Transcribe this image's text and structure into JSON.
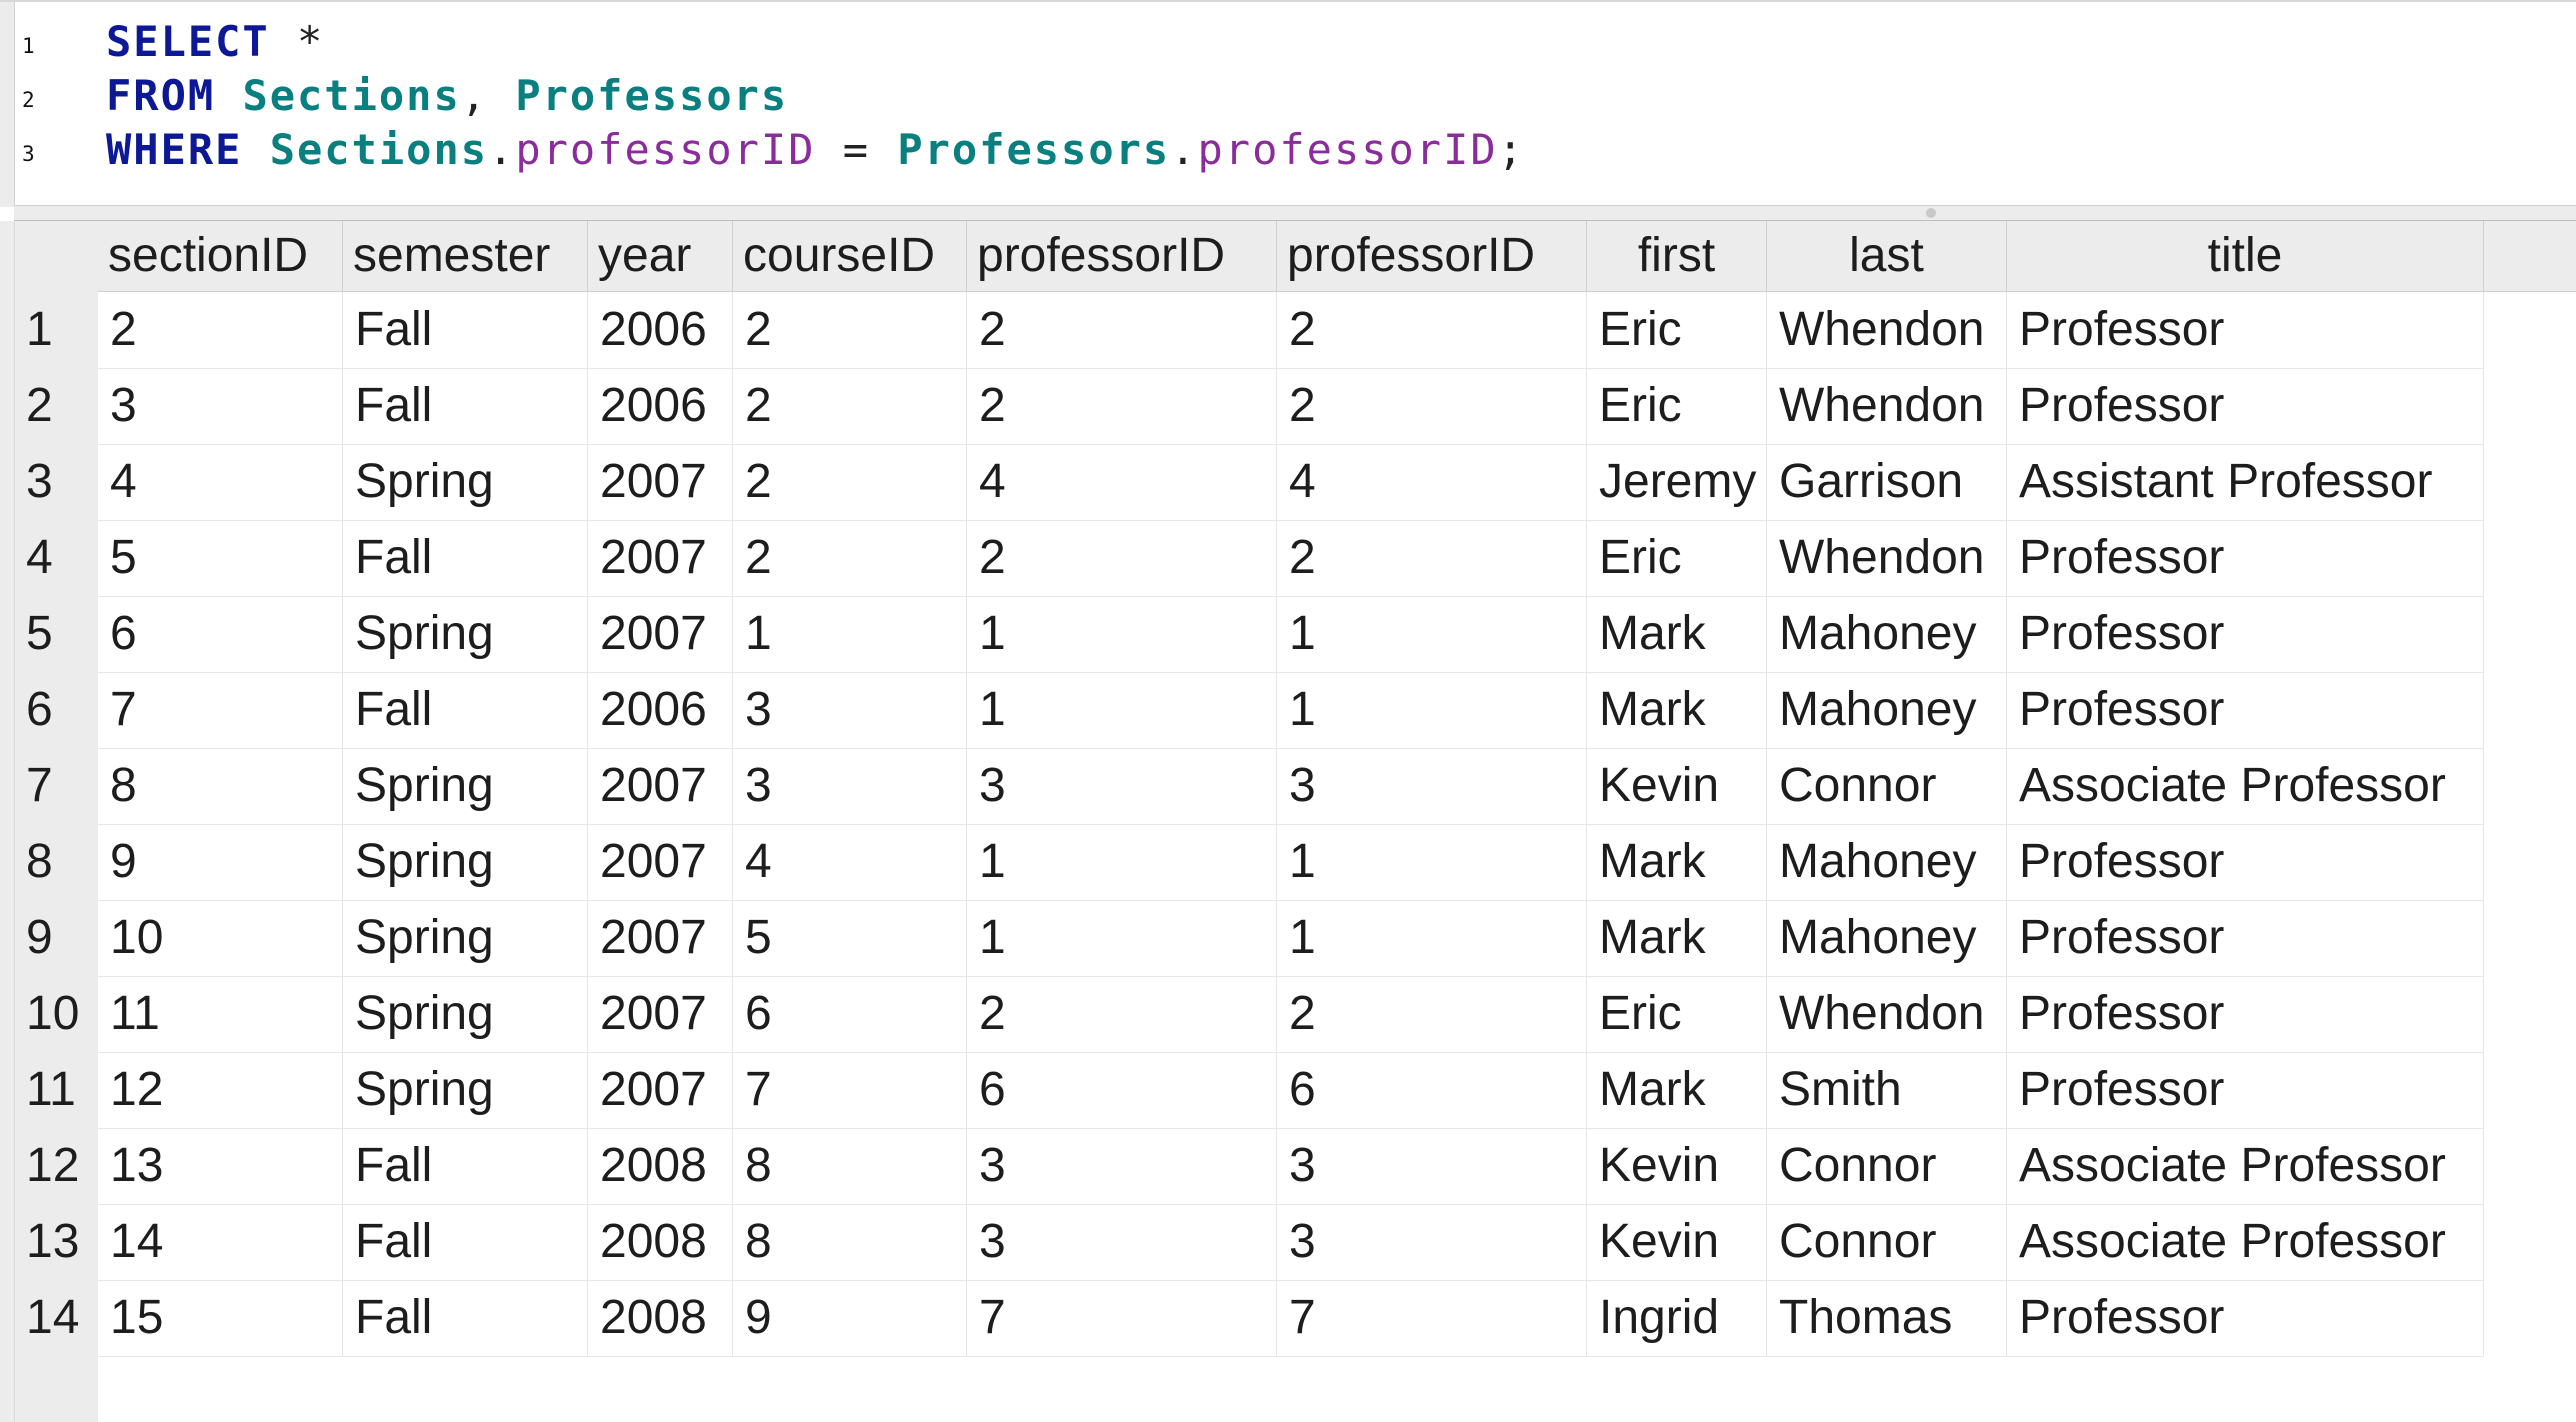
{
  "editor": {
    "line_numbers": [
      "1",
      "2",
      "3"
    ],
    "lines": [
      {
        "tokens": [
          {
            "text": "SELECT",
            "kind": "kw"
          },
          {
            "text": " *",
            "kind": "op"
          }
        ]
      },
      {
        "tokens": [
          {
            "text": "FROM",
            "kind": "kw"
          },
          {
            "text": " ",
            "kind": "op"
          },
          {
            "text": "Sections",
            "kind": "tbl"
          },
          {
            "text": ", ",
            "kind": "op"
          },
          {
            "text": "Professors",
            "kind": "tbl"
          }
        ]
      },
      {
        "tokens": [
          {
            "text": "WHERE",
            "kind": "kw"
          },
          {
            "text": " ",
            "kind": "op"
          },
          {
            "text": "Sections",
            "kind": "tbl"
          },
          {
            "text": ".",
            "kind": "op"
          },
          {
            "text": "professorID",
            "kind": "col"
          },
          {
            "text": " = ",
            "kind": "op"
          },
          {
            "text": "Professors",
            "kind": "tbl"
          },
          {
            "text": ".",
            "kind": "op"
          },
          {
            "text": "professorID",
            "kind": "col"
          },
          {
            "text": ";",
            "kind": "op"
          }
        ]
      }
    ],
    "colors": {
      "keyword": "#0d1896",
      "table": "#0a7f7f",
      "column": "#8a2c9c"
    }
  },
  "results": {
    "columns": [
      "sectionID",
      "semester",
      "year",
      "courseID",
      "professorID",
      "professorID",
      "first",
      "last",
      "title"
    ],
    "rows": [
      {
        "num": "1",
        "cells": [
          "2",
          "Fall",
          "2006",
          "2",
          "2",
          "2",
          "Eric",
          "Whendon",
          "Professor"
        ]
      },
      {
        "num": "2",
        "cells": [
          "3",
          "Fall",
          "2006",
          "2",
          "2",
          "2",
          "Eric",
          "Whendon",
          "Professor"
        ]
      },
      {
        "num": "3",
        "cells": [
          "4",
          "Spring",
          "2007",
          "2",
          "4",
          "4",
          "Jeremy",
          "Garrison",
          "Assistant Professor"
        ]
      },
      {
        "num": "4",
        "cells": [
          "5",
          "Fall",
          "2007",
          "2",
          "2",
          "2",
          "Eric",
          "Whendon",
          "Professor"
        ]
      },
      {
        "num": "5",
        "cells": [
          "6",
          "Spring",
          "2007",
          "1",
          "1",
          "1",
          "Mark",
          "Mahoney",
          "Professor"
        ]
      },
      {
        "num": "6",
        "cells": [
          "7",
          "Fall",
          "2006",
          "3",
          "1",
          "1",
          "Mark",
          "Mahoney",
          "Professor"
        ]
      },
      {
        "num": "7",
        "cells": [
          "8",
          "Spring",
          "2007",
          "3",
          "3",
          "3",
          "Kevin",
          "Connor",
          "Associate Professor"
        ]
      },
      {
        "num": "8",
        "cells": [
          "9",
          "Spring",
          "2007",
          "4",
          "1",
          "1",
          "Mark",
          "Mahoney",
          "Professor"
        ]
      },
      {
        "num": "9",
        "cells": [
          "10",
          "Spring",
          "2007",
          "5",
          "1",
          "1",
          "Mark",
          "Mahoney",
          "Professor"
        ]
      },
      {
        "num": "10",
        "cells": [
          "11",
          "Spring",
          "2007",
          "6",
          "2",
          "2",
          "Eric",
          "Whendon",
          "Professor"
        ]
      },
      {
        "num": "11",
        "cells": [
          "12",
          "Spring",
          "2007",
          "7",
          "6",
          "6",
          "Mark",
          "Smith",
          "Professor"
        ]
      },
      {
        "num": "12",
        "cells": [
          "13",
          "Fall",
          "2008",
          "8",
          "3",
          "3",
          "Kevin",
          "Connor",
          "Associate Professor"
        ]
      },
      {
        "num": "13",
        "cells": [
          "14",
          "Fall",
          "2008",
          "8",
          "3",
          "3",
          "Kevin",
          "Connor",
          "Associate Professor"
        ]
      },
      {
        "num": "14",
        "cells": [
          "15",
          "Fall",
          "2008",
          "9",
          "7",
          "7",
          "Ingrid",
          "Thomas",
          "Professor"
        ]
      }
    ]
  }
}
